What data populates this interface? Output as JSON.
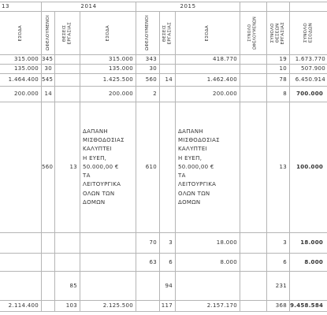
{
  "years": {
    "y2013": "13",
    "y2014": "2014",
    "y2015": "2015"
  },
  "headers": {
    "esoda": "ΕΣΟΔΑ",
    "ofeloumenoi": "ΩΦΕΛΟΥΜΕΝΟΙ",
    "theseis_ergasias": "ΘΕΣΕΙΣ\nΕΡΓΑΣΙΑΣ",
    "synolo_ofeloumenon": "ΣΥΝΟΛΟ\nΩΦΕΛΟΥΜΕΝΩΝ",
    "synolo_theseon_ergasias": "ΣΥΝΟΛΟ\nΘΕΣΕΩΝ\nΕΡΓΑΣΙΑΣ",
    "synolo_esodon": "ΣΥΝΟΛΟ\nΕΣΟΔΩΝ"
  },
  "rows": [
    {
      "esoda_2013": "315.000",
      "ofel_2014": "345",
      "theseis_2014": "",
      "esoda_2014": "315.000",
      "ofel_2015": "343",
      "theseis_2015": "",
      "esoda_2015": "418.770",
      "synolo_ofel": "",
      "synolo_theseon": "19",
      "synolo_esodon": "1.673.770"
    },
    {
      "esoda_2013": "135.000",
      "ofel_2014": "30",
      "theseis_2014": "",
      "esoda_2014": "135.000",
      "ofel_2015": "30",
      "theseis_2015": "",
      "esoda_2015": "",
      "synolo_ofel": "",
      "synolo_theseon": "10",
      "synolo_esodon": "507.900"
    },
    {
      "esoda_2013": "1.464.400",
      "ofel_2014": "545",
      "theseis_2014": "",
      "esoda_2014": "1.425.500",
      "ofel_2015": "560",
      "theseis_2015": "14",
      "esoda_2015": "1.462.400",
      "synolo_ofel": "",
      "synolo_theseon": "78",
      "synolo_esodon": "6.450.914"
    },
    {
      "esoda_2013": "200.000",
      "ofel_2014": "14",
      "theseis_2014": "",
      "esoda_2014": "200.000",
      "ofel_2015": "2",
      "theseis_2015": "",
      "esoda_2015": "200.000",
      "synolo_ofel": "",
      "synolo_theseon": "8",
      "synolo_esodon": "700.000"
    }
  ],
  "tall_row": {
    "ofel_2014": "560",
    "theseis_2014": "13",
    "text_2014": "ΔΑΠΑΝΗ\nΜΙΣΘΟΔΟΣΙΑΣ\nΚΑΛΥΠΤΕΙ\nΗ ΕΥΕΠ,\n50.000,00 €\nΤΑ\nΛΕΙΤΟΥΡΓΙΚΑ\nΟΛΩΝ ΤΩΝ\nΔΟΜΩΝ",
    "ofel_2015": "610",
    "text_2015": "ΔΑΠΑΝΗ\nΜΙΣΘΟΔΟΣΙΑΣ\nΚΑΛΥΠΤΕΙ\nΗ ΕΥΕΠ,\n50.000,00 €\nΤΑ\nΛΕΙΤΟΥΡΓΙΚΑ\nΟΛΩΝ ΤΩΝ\nΔΟΜΩΝ",
    "synolo_theseon": "13",
    "synolo_esodon": "100.000"
  },
  "row_a": {
    "ofel_2015": "70",
    "theseis_2015": "3",
    "esoda_2015": "18.000",
    "synolo_theseon": "3",
    "synolo_esodon": "18.000"
  },
  "row_b": {
    "ofel_2015": "63",
    "theseis_2015": "6",
    "esoda_2015": "8.000",
    "synolo_theseon": "6",
    "synolo_esodon": "8.000"
  },
  "row_c": {
    "theseis_2014": "85",
    "theseis_2015": "94",
    "synolo_theseon": "231"
  },
  "totals": {
    "esoda_2013": "2.114.400",
    "theseis_2014": "103",
    "esoda_2014": "2.125.500",
    "theseis_2015": "117",
    "esoda_2015": "2.157.170",
    "synolo_theseon": "368",
    "synolo_esodon": "9.458.584"
  }
}
